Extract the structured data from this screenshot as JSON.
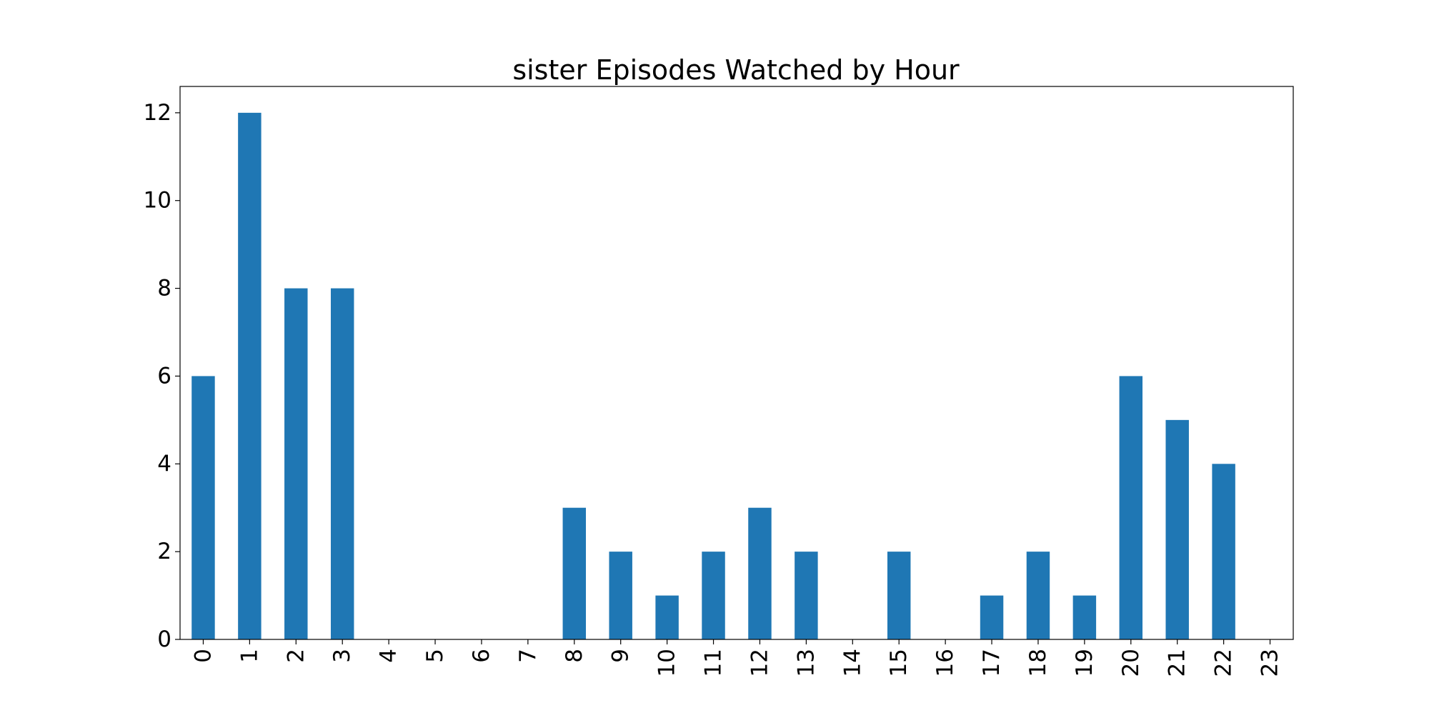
{
  "chart_data": {
    "type": "bar",
    "title": "sister Episodes Watched by Hour",
    "xlabel": "",
    "ylabel": "",
    "categories": [
      "0",
      "1",
      "2",
      "3",
      "4",
      "5",
      "6",
      "7",
      "8",
      "9",
      "10",
      "11",
      "12",
      "13",
      "14",
      "15",
      "16",
      "17",
      "18",
      "19",
      "20",
      "21",
      "22",
      "23"
    ],
    "values": [
      6,
      12,
      8,
      8,
      0,
      0,
      0,
      0,
      3,
      2,
      1,
      2,
      3,
      2,
      0,
      2,
      0,
      1,
      2,
      1,
      6,
      5,
      4,
      0
    ],
    "yticks": [
      "0",
      "2",
      "4",
      "6",
      "8",
      "10",
      "12"
    ],
    "ylim": [
      0,
      12.6
    ],
    "grid": false,
    "legend": "none",
    "bar_color": "#1f77b4"
  }
}
